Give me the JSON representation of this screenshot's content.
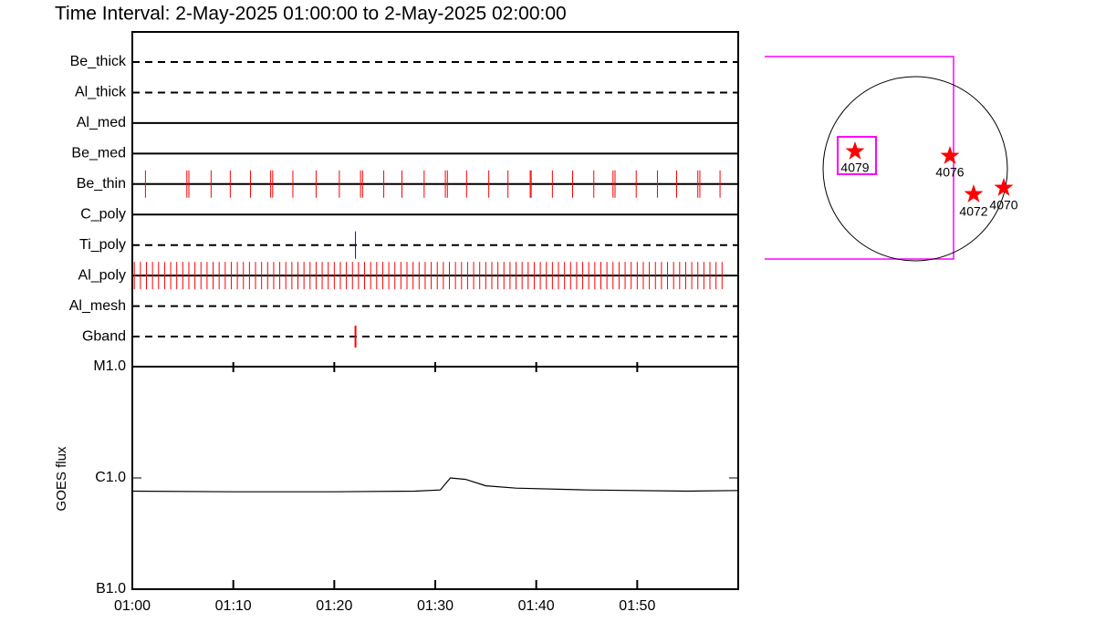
{
  "chart_data": [
    {
      "type": "event",
      "title": "Time Interval:  2-May-2025 01:00:00 to  2-May-2025 02:00:00",
      "categories": [
        "Be_thick",
        "Al_thick",
        "Al_med",
        "Be_med",
        "Be_thin",
        "C_poly",
        "Ti_poly",
        "Al_poly",
        "Al_mesh",
        "Gband"
      ],
      "line_styles": [
        "dashed",
        "dashed",
        "solid",
        "solid",
        "solid",
        "solid",
        "dashed",
        "solid",
        "dashed",
        "dashed"
      ],
      "event_colors": [
        "#ff0000",
        "#ff0000",
        "#ff0000",
        "#ff0000",
        "#ff0000",
        "#ff0000",
        "#0000ff",
        "#ff0000",
        "#ff0000",
        "#ff0000"
      ],
      "events": [
        [],
        [],
        [],
        [],
        [
          1.3,
          5.4,
          5.6,
          7.8,
          9.7,
          11.7,
          13.7,
          13.9,
          15.9,
          18.2,
          20.5,
          22.6,
          22.8,
          24.9,
          26.7,
          28.9,
          31.0,
          31.2,
          33.1,
          35.3,
          37.2,
          39.4,
          39.5,
          41.6,
          43.6,
          45.7,
          47.6,
          47.8,
          49.9,
          52.0,
          53.9,
          56.0,
          56.2,
          58.2
        ],
        [],
        [
          22.1
        ],
        [
          0.2,
          0.8,
          1.4,
          2.0,
          2.6,
          3.2,
          3.8,
          4.4,
          5.0,
          5.6,
          6.2,
          6.8,
          7.4,
          8.0,
          8.6,
          9.2,
          9.8,
          10.4,
          11.0,
          11.6,
          12.2,
          12.8,
          13.4,
          14.0,
          14.6,
          15.2,
          15.8,
          16.4,
          17.0,
          17.6,
          18.2,
          18.8,
          19.4,
          20.0,
          20.6,
          21.2,
          21.8,
          22.4,
          23.0,
          23.6,
          24.2,
          24.8,
          25.4,
          26.0,
          26.6,
          27.2,
          27.8,
          28.4,
          29.0,
          29.6,
          30.2,
          30.8,
          31.4,
          32.0,
          32.6,
          33.2,
          33.8,
          34.4,
          35.0,
          35.6,
          36.2,
          36.8,
          37.4,
          38.0,
          38.6,
          39.2,
          39.8,
          40.4,
          41.0,
          41.6,
          42.2,
          42.8,
          43.4,
          44.0,
          44.6,
          45.2,
          45.8,
          46.4,
          47.0,
          47.6,
          48.2,
          48.8,
          49.4,
          50.0,
          50.6,
          51.2,
          51.8,
          52.4,
          53.0,
          53.6,
          54.2,
          54.8,
          55.4,
          56.0,
          56.6,
          57.2,
          57.8,
          58.4
        ],
        [],
        [
          22.1
        ]
      ],
      "xlim": [
        0,
        60
      ]
    },
    {
      "type": "line",
      "ylabel": "GOES flux",
      "x": [
        0,
        10,
        20,
        28,
        30.5,
        31.5,
        33,
        35,
        38,
        45,
        55,
        60
      ],
      "values": [
        7.6e-07,
        7.5e-07,
        7.5e-07,
        7.6e-07,
        7.8e-07,
        1e-06,
        9.7e-07,
        8.5e-07,
        8.1e-07,
        7.8e-07,
        7.6e-07,
        7.7e-07
      ],
      "color": "#000000",
      "log_y": true,
      "ylim": [
        1e-07,
        1e-05
      ],
      "yticks": [
        {
          "value": 1e-05,
          "label": "M1.0"
        },
        {
          "value": 1e-06,
          "label": "C1.0"
        },
        {
          "value": 1e-07,
          "label": "B1.0"
        }
      ],
      "xlim": [
        0,
        60
      ],
      "xticks": [
        {
          "value": 0,
          "label": "01:00"
        },
        {
          "value": 10,
          "label": "01:10"
        },
        {
          "value": 20,
          "label": "01:20"
        },
        {
          "value": 30,
          "label": "01:30"
        },
        {
          "value": 40,
          "label": "01:40"
        },
        {
          "value": 50,
          "label": "01:50"
        }
      ]
    }
  ],
  "map": {
    "regions": [
      {
        "label": "4079"
      },
      {
        "label": "4076"
      },
      {
        "label": "4072"
      },
      {
        "label": "4070"
      }
    ]
  }
}
